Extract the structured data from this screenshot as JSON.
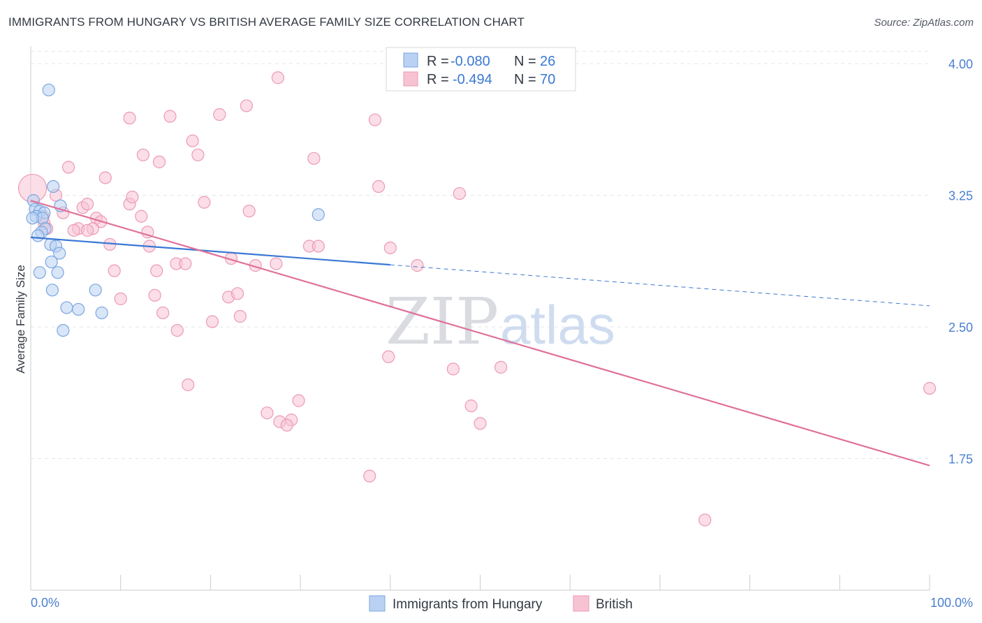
{
  "header": {
    "title": "IMMIGRANTS FROM HUNGARY VS BRITISH AVERAGE FAMILY SIZE CORRELATION CHART",
    "source": "Source: ZipAtlas.com"
  },
  "watermark": {
    "zip": "ZIP",
    "atlas": "atlas"
  },
  "legend": {
    "r_label": "R =",
    "n_label": "N =",
    "rows": [
      {
        "r": "-0.080",
        "n": "26"
      },
      {
        "r": "-0.494",
        "n": "70"
      }
    ]
  },
  "bottom_legend": [
    {
      "label": "Immigrants from Hungary"
    },
    {
      "label": "British"
    }
  ],
  "colors": {
    "hungary_fill": "#b9d1f3",
    "hungary_stroke": "#7aa6e0",
    "hungary_line": "#3a78d4",
    "british_fill": "#f7c3d3",
    "british_stroke": "#ec9ab6",
    "british_line": "#e0709a",
    "tick_text": "#4a7fd0",
    "grid": "#e3e5ea"
  },
  "chart_data": {
    "type": "scatter",
    "title": "IMMIGRANTS FROM HUNGARY VS BRITISH AVERAGE FAMILY SIZE CORRELATION CHART",
    "ylabel": "Average Family Size",
    "xlabel": "",
    "xlim": [
      0,
      100
    ],
    "ylim": [
      1.0,
      4.1
    ],
    "y_ticks": [
      1.75,
      2.5,
      3.25,
      4.0
    ],
    "y_tick_labels": [
      "1.75",
      "2.50",
      "3.25",
      "4.00"
    ],
    "x_tick_labels": [
      "0.0%",
      "100.0%"
    ],
    "grid": true,
    "legend_position": "top-center",
    "series": [
      {
        "name": "Immigrants from Hungary",
        "r": -0.08,
        "n": 26,
        "trend": {
          "x0": 0,
          "y0": 3.01,
          "x1": 100,
          "y1": 2.62,
          "solid_until": 40
        },
        "points": [
          [
            2.0,
            3.85
          ],
          [
            2.5,
            3.3
          ],
          [
            0.3,
            3.22
          ],
          [
            0.5,
            3.17
          ],
          [
            1.0,
            3.16
          ],
          [
            1.5,
            3.15
          ],
          [
            0.6,
            3.13
          ],
          [
            1.3,
            3.12
          ],
          [
            0.2,
            3.12
          ],
          [
            3.3,
            3.19
          ],
          [
            1.6,
            3.06
          ],
          [
            1.2,
            3.04
          ],
          [
            0.8,
            3.02
          ],
          [
            2.2,
            2.97
          ],
          [
            2.8,
            2.96
          ],
          [
            3.2,
            2.92
          ],
          [
            2.3,
            2.87
          ],
          [
            1.0,
            2.81
          ],
          [
            3.0,
            2.81
          ],
          [
            2.4,
            2.71
          ],
          [
            7.2,
            2.71
          ],
          [
            4.0,
            2.61
          ],
          [
            5.3,
            2.6
          ],
          [
            7.9,
            2.58
          ],
          [
            3.6,
            2.48
          ],
          [
            32.0,
            3.14
          ]
        ]
      },
      {
        "name": "British",
        "r": -0.494,
        "n": 70,
        "trend": {
          "x0": 0,
          "y0": 3.22,
          "x1": 100,
          "y1": 1.71
        },
        "points": [
          [
            0.2,
            3.29
          ],
          [
            2.8,
            3.25
          ],
          [
            1.4,
            3.13
          ],
          [
            1.5,
            3.09
          ],
          [
            1.8,
            3.06
          ],
          [
            3.6,
            3.15
          ],
          [
            4.2,
            3.41
          ],
          [
            8.3,
            3.35
          ],
          [
            5.8,
            3.18
          ],
          [
            6.3,
            3.2
          ],
          [
            7.3,
            3.12
          ],
          [
            7.8,
            3.1
          ],
          [
            6.9,
            3.06
          ],
          [
            5.3,
            3.06
          ],
          [
            4.8,
            3.05
          ],
          [
            6.3,
            3.05
          ],
          [
            8.8,
            2.97
          ],
          [
            9.3,
            2.82
          ],
          [
            10.0,
            2.66
          ],
          [
            11.0,
            3.2
          ],
          [
            11.3,
            3.24
          ],
          [
            12.3,
            3.13
          ],
          [
            13.0,
            3.04
          ],
          [
            13.2,
            2.96
          ],
          [
            11.0,
            3.69
          ],
          [
            12.5,
            3.48
          ],
          [
            14.3,
            3.44
          ],
          [
            14.0,
            2.82
          ],
          [
            15.5,
            3.7
          ],
          [
            13.8,
            2.68
          ],
          [
            16.2,
            2.86
          ],
          [
            17.2,
            2.86
          ],
          [
            16.3,
            2.48
          ],
          [
            18.0,
            3.56
          ],
          [
            18.6,
            3.48
          ],
          [
            19.3,
            3.21
          ],
          [
            14.7,
            2.58
          ],
          [
            17.5,
            2.17
          ],
          [
            20.2,
            2.53
          ],
          [
            21.0,
            3.71
          ],
          [
            22.3,
            2.89
          ],
          [
            22.0,
            2.67
          ],
          [
            23.0,
            2.69
          ],
          [
            23.3,
            2.56
          ],
          [
            24.0,
            3.76
          ],
          [
            24.3,
            3.16
          ],
          [
            27.5,
            3.92
          ],
          [
            25.0,
            2.85
          ],
          [
            27.3,
            2.86
          ],
          [
            26.3,
            2.01
          ],
          [
            27.7,
            1.96
          ],
          [
            29.0,
            1.97
          ],
          [
            29.8,
            2.08
          ],
          [
            28.5,
            1.94
          ],
          [
            31.0,
            2.96
          ],
          [
            32.0,
            2.96
          ],
          [
            31.5,
            3.46
          ],
          [
            38.3,
            3.68
          ],
          [
            38.7,
            3.3
          ],
          [
            40.0,
            2.95
          ],
          [
            43.0,
            2.85
          ],
          [
            39.8,
            2.33
          ],
          [
            47.0,
            2.26
          ],
          [
            47.7,
            3.26
          ],
          [
            49.0,
            2.05
          ],
          [
            50.0,
            1.95
          ],
          [
            52.3,
            2.27
          ],
          [
            37.7,
            1.65
          ],
          [
            75.0,
            1.4
          ],
          [
            100.0,
            2.15
          ]
        ]
      }
    ]
  }
}
